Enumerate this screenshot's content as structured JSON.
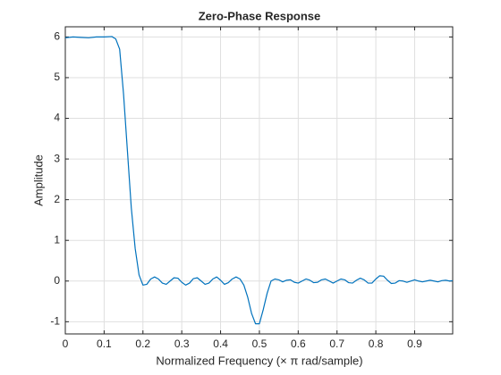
{
  "chart_data": {
    "type": "line",
    "title": "Zero-Phase Response",
    "x_label": "Normalized Frequency (× π rad/sample)",
    "y_label": "Amplitude",
    "x": [
      0,
      0.02,
      0.04,
      0.06,
      0.08,
      0.1,
      0.12,
      0.13,
      0.14,
      0.15,
      0.16,
      0.17,
      0.18,
      0.19,
      0.2,
      0.21,
      0.22,
      0.23,
      0.24,
      0.25,
      0.26,
      0.27,
      0.28,
      0.29,
      0.3,
      0.31,
      0.32,
      0.33,
      0.34,
      0.35,
      0.36,
      0.37,
      0.38,
      0.39,
      0.4,
      0.41,
      0.42,
      0.43,
      0.44,
      0.45,
      0.46,
      0.47,
      0.48,
      0.49,
      0.5,
      0.51,
      0.52,
      0.53,
      0.54,
      0.55,
      0.56,
      0.57,
      0.58,
      0.59,
      0.6,
      0.61,
      0.62,
      0.63,
      0.64,
      0.65,
      0.66,
      0.67,
      0.68,
      0.69,
      0.7,
      0.71,
      0.72,
      0.73,
      0.74,
      0.75,
      0.76,
      0.77,
      0.78,
      0.79,
      0.8,
      0.81,
      0.82,
      0.83,
      0.84,
      0.85,
      0.86,
      0.87,
      0.88,
      0.89,
      0.9,
      0.91,
      0.92,
      0.93,
      0.94,
      0.95,
      0.96,
      0.97,
      0.98,
      0.99,
      0.998
    ],
    "series": [
      {
        "name": "Amplitude",
        "color": "#0072bd",
        "values": [
          5.98,
          6.0,
          5.99,
          5.98,
          6.0,
          6.0,
          6.01,
          5.95,
          5.7,
          4.6,
          3.2,
          1.8,
          0.8,
          0.15,
          -0.1,
          -0.08,
          0.05,
          0.1,
          0.05,
          -0.05,
          -0.08,
          0.0,
          0.08,
          0.07,
          -0.03,
          -0.1,
          -0.05,
          0.06,
          0.08,
          0.0,
          -0.08,
          -0.05,
          0.05,
          0.1,
          0.02,
          -0.08,
          -0.04,
          0.05,
          0.1,
          0.05,
          -0.1,
          -0.4,
          -0.8,
          -1.05,
          -1.05,
          -0.7,
          -0.3,
          0.0,
          0.05,
          0.03,
          -0.02,
          0.02,
          0.03,
          -0.03,
          -0.05,
          0.0,
          0.05,
          0.02,
          -0.04,
          -0.03,
          0.03,
          0.05,
          0.0,
          -0.05,
          0.0,
          0.05,
          0.03,
          -0.04,
          -0.05,
          0.02,
          0.07,
          0.03,
          -0.05,
          -0.05,
          0.05,
          0.13,
          0.12,
          0.02,
          -0.06,
          -0.05,
          0.01,
          0.0,
          -0.03,
          0.0,
          0.03,
          0.0,
          -0.02,
          0.0,
          0.02,
          0.0,
          -0.02,
          0.01,
          0.02,
          0.0,
          0.01
        ]
      }
    ],
    "xlim": [
      0,
      0.998
    ],
    "ylim": [
      -1.3,
      6.25
    ],
    "xticks": [
      0,
      0.1,
      0.2,
      0.3,
      0.4,
      0.5,
      0.6,
      0.7,
      0.8,
      0.9
    ],
    "yticks": [
      -1,
      0,
      1,
      2,
      3,
      4,
      5,
      6
    ],
    "grid": true
  }
}
